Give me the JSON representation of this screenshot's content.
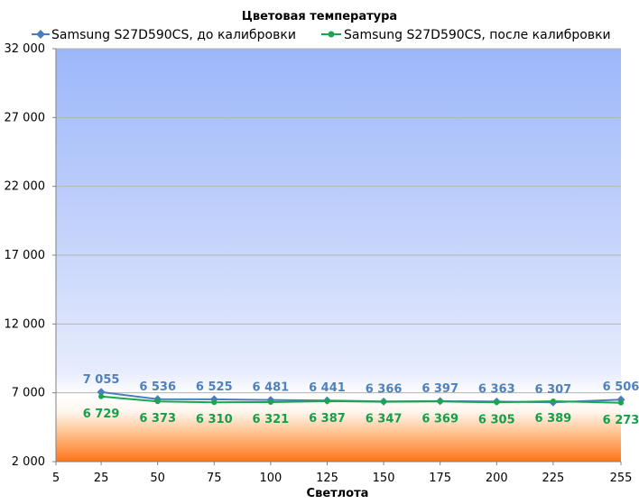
{
  "chart_data": {
    "type": "line",
    "title": "Цветовая температура",
    "xlabel": "Светлота",
    "ylabel": "",
    "xlim": [
      5,
      255
    ],
    "ylim": [
      2000,
      32000
    ],
    "x_ticks": [
      "5",
      "25",
      "50",
      "75",
      "100",
      "125",
      "150",
      "175",
      "200",
      "225",
      "255"
    ],
    "y_ticks": [
      "2 000",
      "7 000",
      "12 000",
      "17 000",
      "22 000",
      "27 000",
      "32 000"
    ],
    "grid": true,
    "legend_position": "top",
    "x": [
      25,
      50,
      75,
      100,
      125,
      150,
      175,
      200,
      225,
      255
    ],
    "series": [
      {
        "name": "Samsung S27D590CS, до калибровки",
        "color": "#4a7ebb",
        "label_color": "#4f81bd",
        "marker": "diamond",
        "values": [
          7055,
          6536,
          6525,
          6481,
          6441,
          6366,
          6397,
          6363,
          6307,
          6506
        ],
        "labels": [
          "7 055",
          "6 536",
          "6 525",
          "6 481",
          "6 441",
          "6 366",
          "6 397",
          "6 363",
          "6 307",
          "6 506"
        ]
      },
      {
        "name": "Samsung S27D590CS, после калибровки",
        "color": "#1aa650",
        "label_color": "#13a04a",
        "marker": "circle",
        "values": [
          6729,
          6373,
          6310,
          6321,
          6387,
          6347,
          6369,
          6305,
          6389,
          6273
        ],
        "labels": [
          "6 729",
          "6 373",
          "6 310",
          "6 321",
          "6 387",
          "6 347",
          "6 369",
          "6 305",
          "6 389",
          "6 273"
        ]
      }
    ]
  }
}
